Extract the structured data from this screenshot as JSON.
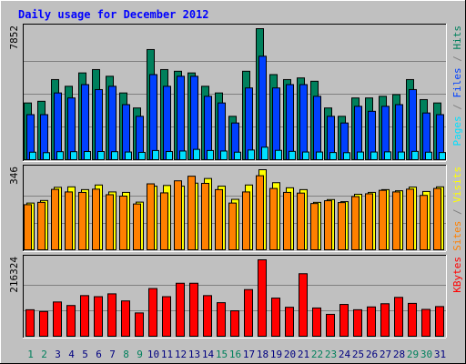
{
  "title": "Daily usage for December 2012",
  "colors": {
    "background": "#c0c0c0",
    "title": "#0000ff",
    "hits": "#00805c",
    "files": "#0040ff",
    "pages": "#00e0ff",
    "visits": "#ffff00",
    "sites": "#ff8000",
    "kbytes": "#ff0000",
    "grid": "#808080",
    "weekend_day": "#00805c",
    "weekday_day": "#000080"
  },
  "chart_data": [
    {
      "type": "bar",
      "name": "hits-files-pages",
      "categories": [
        "1",
        "2",
        "3",
        "4",
        "5",
        "6",
        "7",
        "8",
        "9",
        "10",
        "11",
        "12",
        "13",
        "14",
        "15",
        "16",
        "17",
        "18",
        "19",
        "20",
        "21",
        "22",
        "23",
        "24",
        "25",
        "26",
        "27",
        "28",
        "29",
        "30",
        "31"
      ],
      "ymax": 7852,
      "ymax_label": "7852",
      "legend": [
        "Pages",
        " / ",
        "Files",
        " / ",
        "Hits"
      ],
      "series": [
        {
          "name": "Hits",
          "color": "#00805c",
          "values": [
            3400,
            3500,
            4800,
            4400,
            5200,
            5400,
            5000,
            4000,
            3100,
            6600,
            5400,
            5300,
            5200,
            4400,
            4000,
            2600,
            5300,
            7852,
            5100,
            4800,
            4900,
            4700,
            3100,
            2600,
            3700,
            3700,
            3800,
            3900,
            4800,
            3600,
            3400
          ]
        },
        {
          "name": "Files",
          "color": "#0040ff",
          "values": [
            2700,
            2700,
            4000,
            3700,
            4500,
            4200,
            4400,
            3300,
            2600,
            5100,
            4400,
            5000,
            5000,
            3800,
            3400,
            2200,
            4300,
            6200,
            4300,
            4500,
            4500,
            3800,
            2600,
            2200,
            3200,
            2900,
            3200,
            3300,
            4200,
            2800,
            2700
          ]
        },
        {
          "name": "Pages",
          "color": "#00e0ff",
          "values": [
            450,
            420,
            480,
            480,
            490,
            490,
            480,
            460,
            440,
            550,
            490,
            520,
            620,
            550,
            520,
            450,
            580,
            750,
            560,
            500,
            460,
            460,
            430,
            420,
            460,
            460,
            470,
            460,
            500,
            450,
            430
          ]
        }
      ]
    },
    {
      "type": "bar",
      "name": "visits-sites",
      "categories": [
        "1",
        "2",
        "3",
        "4",
        "5",
        "6",
        "7",
        "8",
        "9",
        "10",
        "11",
        "12",
        "13",
        "14",
        "15",
        "16",
        "17",
        "18",
        "19",
        "20",
        "21",
        "22",
        "23",
        "24",
        "25",
        "26",
        "27",
        "28",
        "29",
        "30",
        "31"
      ],
      "ymax": 346,
      "ymax_label": "346",
      "legend": [
        "Sites",
        " / ",
        "Visits"
      ],
      "series": [
        {
          "name": "Visits",
          "color": "#ffff00",
          "values": [
            202,
            213,
            270,
            272,
            260,
            280,
            250,
            248,
            206,
            275,
            278,
            275,
            288,
            308,
            275,
            218,
            280,
            346,
            290,
            268,
            260,
            205,
            217,
            208,
            240,
            248,
            260,
            255,
            271,
            252,
            272
          ]
        },
        {
          "name": "Sites",
          "color": "#ff8000",
          "values": [
            195,
            205,
            261,
            250,
            248,
            262,
            238,
            232,
            198,
            285,
            246,
            298,
            318,
            287,
            260,
            202,
            250,
            320,
            265,
            248,
            245,
            200,
            212,
            204,
            230,
            242,
            257,
            250,
            262,
            235,
            265
          ]
        }
      ]
    },
    {
      "type": "bar",
      "name": "kbytes",
      "categories": [
        "1",
        "2",
        "3",
        "4",
        "5",
        "6",
        "7",
        "8",
        "9",
        "10",
        "11",
        "12",
        "13",
        "14",
        "15",
        "16",
        "17",
        "18",
        "19",
        "20",
        "21",
        "22",
        "23",
        "24",
        "25",
        "26",
        "27",
        "28",
        "29",
        "30",
        "31"
      ],
      "ymax": 216324,
      "ymax_label": "216324",
      "legend": [
        "KBytes"
      ],
      "series": [
        {
          "name": "KBytes",
          "color": "#ff0000",
          "values": [
            75000,
            70000,
            97000,
            87000,
            115000,
            112000,
            120000,
            100000,
            66000,
            135000,
            112000,
            150000,
            150000,
            115000,
            95000,
            72000,
            132000,
            216324,
            108000,
            82000,
            177000,
            80000,
            62000,
            90000,
            75000,
            83000,
            92000,
            110000,
            93000,
            76000,
            84000
          ]
        }
      ]
    }
  ]
}
